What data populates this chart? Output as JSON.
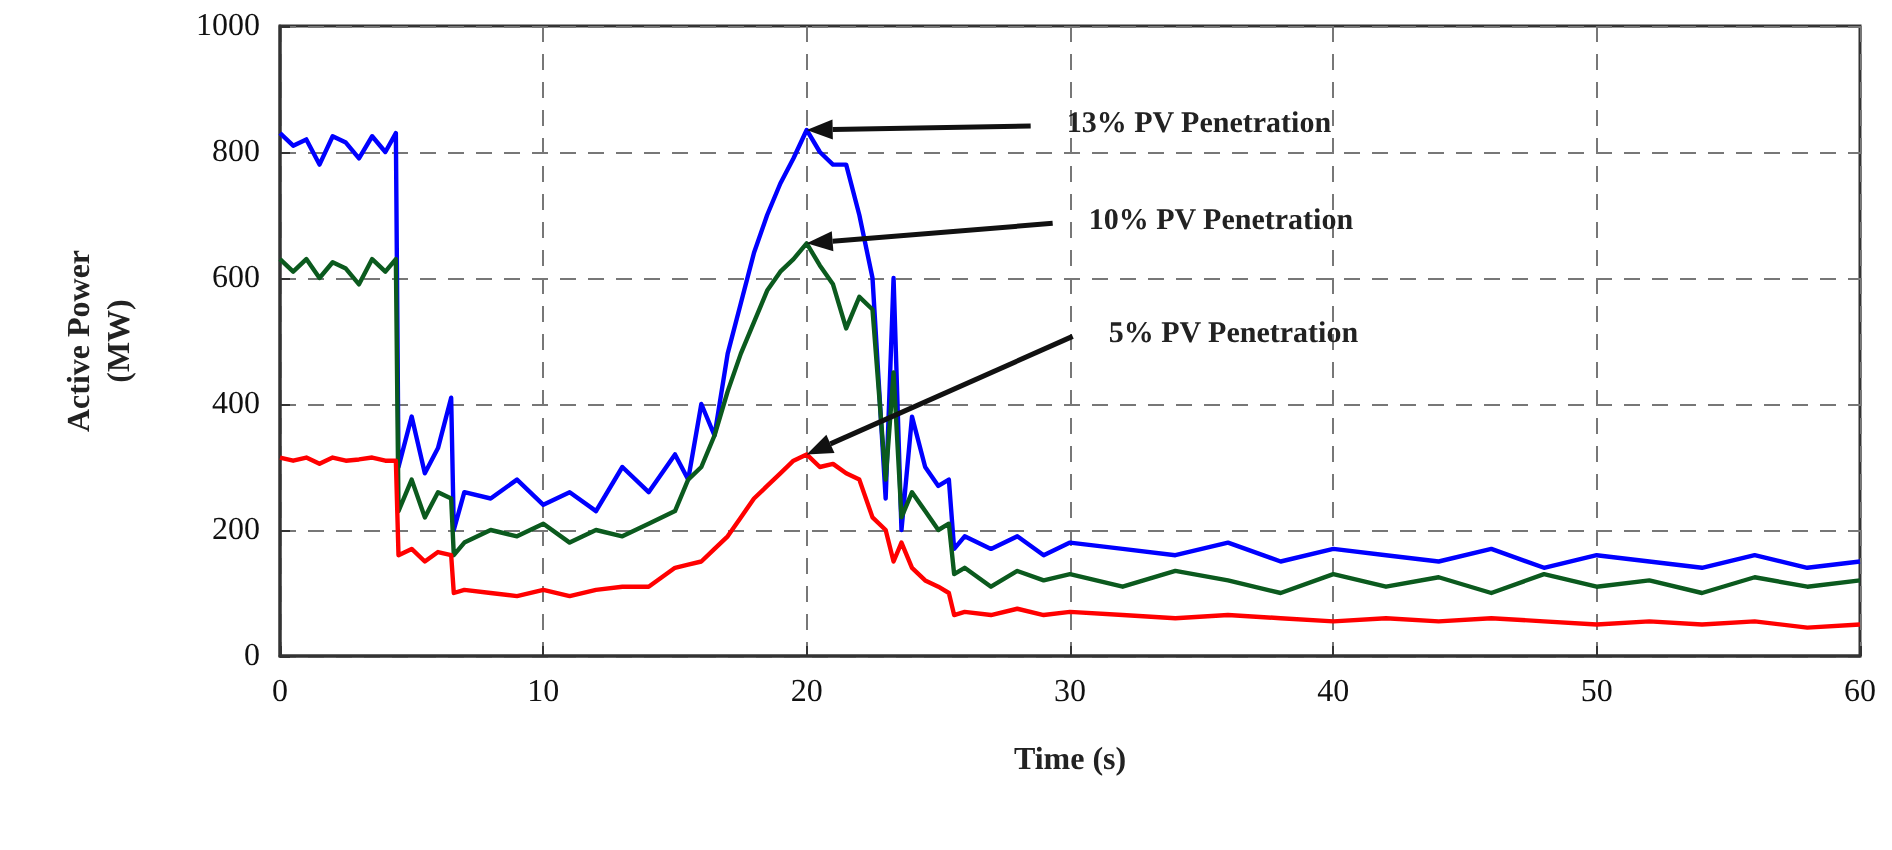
{
  "chart_data": {
    "type": "line",
    "xlabel": "Time (s)",
    "ylabel": "Active Power (MW)",
    "xlim": [
      0,
      60
    ],
    "xticks": [
      0,
      10,
      20,
      30,
      40,
      50,
      60
    ],
    "ylim": [
      0,
      1000
    ],
    "yticks": [
      0,
      200,
      400,
      600,
      800,
      1000
    ],
    "grid": true,
    "x": [
      0,
      0.5,
      1,
      1.5,
      2,
      2.5,
      3,
      3.5,
      4,
      4.4,
      4.5,
      5,
      5.5,
      6,
      6.5,
      6.6,
      7,
      8,
      9,
      10,
      11,
      12,
      13,
      14,
      15,
      15.5,
      16,
      16.5,
      17,
      17.5,
      18,
      18.5,
      19,
      19.5,
      20,
      20.5,
      21,
      21.5,
      22,
      22.5,
      23,
      23.3,
      23.6,
      24,
      24.5,
      25,
      25.4,
      25.6,
      26,
      27,
      28,
      29,
      30,
      32,
      34,
      36,
      38,
      40,
      42,
      44,
      46,
      48,
      50,
      52,
      54,
      56,
      58,
      60
    ],
    "series": [
      {
        "color": "#0000ff",
        "values": [
          830,
          810,
          820,
          780,
          825,
          815,
          790,
          825,
          800,
          830,
          300,
          380,
          290,
          330,
          410,
          200,
          260,
          250,
          280,
          240,
          260,
          230,
          300,
          260,
          320,
          280,
          400,
          350,
          480,
          560,
          640,
          700,
          750,
          790,
          835,
          800,
          780,
          780,
          700,
          600,
          250,
          600,
          200,
          380,
          300,
          270,
          280,
          170,
          190,
          170,
          190,
          160,
          180,
          170,
          160,
          180,
          150,
          170,
          160,
          150,
          170,
          140,
          160,
          150,
          140,
          160,
          140,
          150
        ]
      },
      {
        "color": "#0b5a1e",
        "values": [
          630,
          610,
          630,
          600,
          625,
          615,
          590,
          630,
          610,
          630,
          230,
          280,
          220,
          260,
          250,
          160,
          180,
          200,
          190,
          210,
          180,
          200,
          190,
          210,
          230,
          280,
          300,
          350,
          420,
          480,
          530,
          580,
          610,
          630,
          655,
          620,
          590,
          520,
          570,
          550,
          280,
          450,
          220,
          260,
          230,
          200,
          210,
          130,
          140,
          110,
          135,
          120,
          130,
          110,
          135,
          120,
          100,
          130,
          110,
          125,
          100,
          130,
          110,
          120,
          100,
          125,
          110,
          120
        ]
      },
      {
        "color": "#ff0000",
        "values": [
          315,
          310,
          315,
          305,
          315,
          310,
          312,
          315,
          310,
          310,
          160,
          170,
          150,
          165,
          160,
          100,
          105,
          100,
          95,
          105,
          95,
          105,
          110,
          110,
          140,
          145,
          150,
          170,
          190,
          220,
          250,
          270,
          290,
          310,
          320,
          300,
          305,
          290,
          280,
          220,
          200,
          150,
          180,
          140,
          120,
          110,
          100,
          65,
          70,
          65,
          75,
          65,
          70,
          65,
          60,
          65,
          60,
          55,
          60,
          55,
          60,
          55,
          50,
          55,
          50,
          55,
          45,
          50
        ]
      }
    ],
    "annotations": [
      "13% PV Penetration",
      "10% PV Penetration",
      "5% PV Penetration"
    ]
  }
}
